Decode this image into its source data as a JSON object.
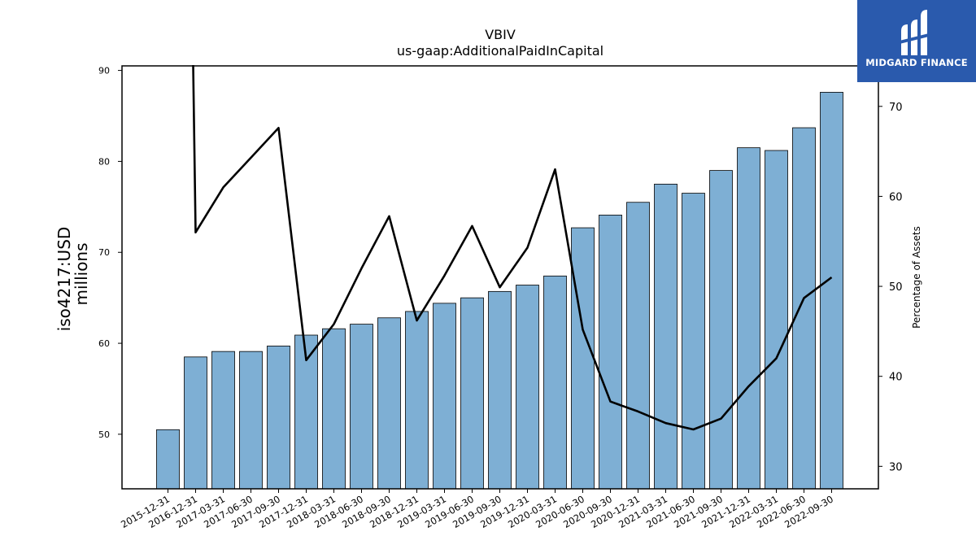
{
  "logo": {
    "text": "MIDGARD FINANCE",
    "bg_color": "#2a5aad",
    "mark_icon": "midgard-logo-icon"
  },
  "chart_data": {
    "type": "bar",
    "title": "VBIV",
    "subtitle": "us-gaap:AdditionalPaidInCapital",
    "ylabel": "iso4217:USD",
    "ylabel2": "millions",
    "y2label": "Percentage of Assets",
    "ylim": [
      44,
      90.5
    ],
    "y2lim": [
      27.5,
      74.5
    ],
    "yticks": [
      50,
      60,
      70,
      80,
      90
    ],
    "y2ticks": [
      30,
      40,
      50,
      60,
      70
    ],
    "bar_color": "#7eafd4",
    "line_color": "#000000",
    "grid": false,
    "categories": [
      "2015-12-31",
      "2016-12-31",
      "2017-03-31",
      "2017-06-30",
      "2017-09-30",
      "2017-12-31",
      "2018-03-31",
      "2018-06-30",
      "2018-09-30",
      "2018-12-31",
      "2019-03-31",
      "2019-06-30",
      "2019-09-30",
      "2019-12-31",
      "2020-03-31",
      "2020-06-30",
      "2020-09-30",
      "2020-12-31",
      "2021-03-31",
      "2021-06-30",
      "2021-09-30",
      "2021-12-31",
      "2022-03-31",
      "2022-06-30",
      "2022-09-30"
    ],
    "series": [
      {
        "type": "bar",
        "axis": "left",
        "values": [
          50.5,
          58.5,
          59.1,
          59.1,
          59.7,
          60.9,
          61.6,
          62.1,
          62.8,
          63.5,
          64.4,
          65.0,
          65.7,
          66.4,
          67.4,
          72.7,
          74.1,
          75.5,
          77.5,
          76.5,
          79.0,
          81.5,
          81.2,
          83.7,
          87.6
        ]
      },
      {
        "type": "line",
        "axis": "right",
        "values": [
          null,
          56.0,
          61.0,
          64.3,
          67.6,
          41.8,
          45.8,
          52.0,
          57.8,
          46.2,
          51.2,
          56.7,
          49.9,
          54.3,
          63.0,
          45.2,
          37.2,
          36.1,
          34.8,
          34.1,
          35.3,
          38.9,
          42.0,
          48.7,
          51.0
        ],
        "start_value_above_axis": 76.0
      }
    ]
  }
}
